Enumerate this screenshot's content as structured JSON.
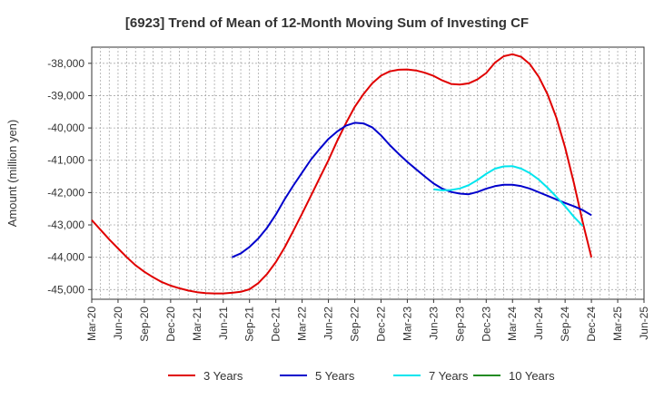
{
  "chart_data": {
    "type": "line",
    "title": "[6923]  Trend of Mean of 12-Month Moving Sum of Investing CF",
    "xlabel": "",
    "ylabel": "Amount (million yen)",
    "ylim": [
      -45300,
      -37500
    ],
    "yticks": [
      -45000,
      -44000,
      -43000,
      -42000,
      -41000,
      -40000,
      -39000,
      -38000
    ],
    "ytick_labels": [
      "-45,000",
      "-44,000",
      "-43,000",
      "-42,000",
      "-41,000",
      "-40,000",
      "-39,000",
      "-38,000"
    ],
    "xtick_labels": [
      "Mar-20",
      "Jun-20",
      "Sep-20",
      "Dec-20",
      "Mar-21",
      "Jun-21",
      "Sep-21",
      "Dec-21",
      "Mar-22",
      "Jun-22",
      "Sep-22",
      "Dec-22",
      "Mar-23",
      "Jun-23",
      "Sep-23",
      "Dec-23",
      "Mar-24",
      "Jun-24",
      "Sep-24",
      "Dec-24",
      "Mar-25",
      "Jun-25"
    ],
    "grid": true,
    "legend_position": "bottom",
    "series": [
      {
        "name": "3 Years",
        "color": "#e00000",
        "start_index": 0,
        "values": [
          -42850,
          -43150,
          -43450,
          -43730,
          -44000,
          -44250,
          -44450,
          -44620,
          -44770,
          -44880,
          -44960,
          -45030,
          -45080,
          -45110,
          -45120,
          -45120,
          -45100,
          -45070,
          -44990,
          -44800,
          -44520,
          -44150,
          -43700,
          -43180,
          -42650,
          -42100,
          -41550,
          -41000,
          -40400,
          -39850,
          -39350,
          -38950,
          -38620,
          -38380,
          -38250,
          -38200,
          -38190,
          -38220,
          -38290,
          -38390,
          -38530,
          -38640,
          -38660,
          -38620,
          -38500,
          -38300,
          -37980,
          -37780,
          -37720,
          -37800,
          -38030,
          -38420,
          -38960,
          -39680,
          -40600,
          -41700,
          -42900,
          -44000
        ]
      },
      {
        "name": "5 Years",
        "color": "#0000cc",
        "start_index": 16,
        "values": [
          -44000,
          -43880,
          -43680,
          -43420,
          -43090,
          -42680,
          -42210,
          -41780,
          -41380,
          -40980,
          -40650,
          -40340,
          -40110,
          -39930,
          -39840,
          -39860,
          -39980,
          -40230,
          -40530,
          -40800,
          -41050,
          -41280,
          -41500,
          -41720,
          -41880,
          -41980,
          -42030,
          -42050,
          -41980,
          -41880,
          -41800,
          -41760,
          -41760,
          -41800,
          -41880,
          -41990,
          -42100,
          -42210,
          -42320,
          -42420,
          -42540,
          -42700
        ]
      },
      {
        "name": "7 Years",
        "color": "#00e5ee",
        "start_index": 39,
        "values": [
          -41900,
          -41930,
          -41920,
          -41870,
          -41770,
          -41610,
          -41420,
          -41260,
          -41190,
          -41180,
          -41260,
          -41400,
          -41600,
          -41850,
          -42130,
          -42420,
          -42750,
          -43030
        ]
      },
      {
        "name": "10 Years",
        "color": "#228b22",
        "start_index": 0,
        "values": []
      }
    ]
  }
}
